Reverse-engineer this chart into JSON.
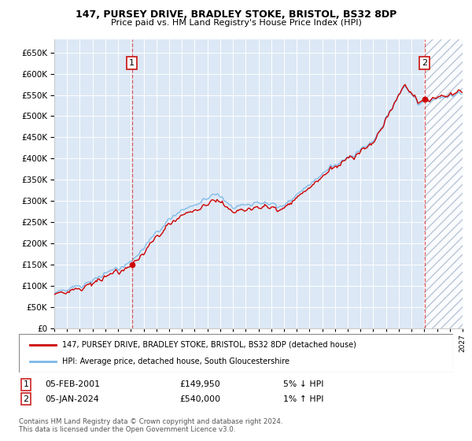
{
  "title": "147, PURSEY DRIVE, BRADLEY STOKE, BRISTOL, BS32 8DP",
  "subtitle": "Price paid vs. HM Land Registry's House Price Index (HPI)",
  "legend_line1": "147, PURSEY DRIVE, BRADLEY STOKE, BRISTOL, BS32 8DP (detached house)",
  "legend_line2": "HPI: Average price, detached house, South Gloucestershire",
  "annotation1_date": "05-FEB-2001",
  "annotation1_price": "£149,950",
  "annotation1_hpi": "5% ↓ HPI",
  "annotation2_date": "05-JAN-2024",
  "annotation2_price": "£540,000",
  "annotation2_hpi": "1% ↑ HPI",
  "footer": "Contains HM Land Registry data © Crown copyright and database right 2024.\nThis data is licensed under the Open Government Licence v3.0.",
  "sale1_year": 2001.08,
  "sale1_price": 149950,
  "sale2_year": 2024.03,
  "sale2_price": 540000,
  "hpi_color": "#7ab8e8",
  "price_color": "#cc0000",
  "bg_color": "#dce8f5",
  "ylim_min": 0,
  "ylim_max": 680000,
  "xlim_min": 1995,
  "xlim_max": 2027
}
